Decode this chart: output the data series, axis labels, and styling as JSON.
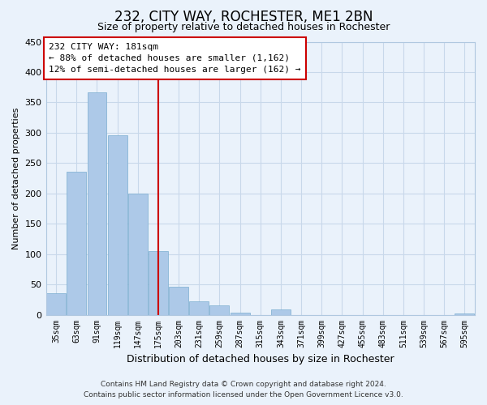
{
  "title": "232, CITY WAY, ROCHESTER, ME1 2BN",
  "subtitle": "Size of property relative to detached houses in Rochester",
  "xlabel": "Distribution of detached houses by size in Rochester",
  "ylabel": "Number of detached properties",
  "categories": [
    "35sqm",
    "63sqm",
    "91sqm",
    "119sqm",
    "147sqm",
    "175sqm",
    "203sqm",
    "231sqm",
    "259sqm",
    "287sqm",
    "315sqm",
    "343sqm",
    "371sqm",
    "399sqm",
    "427sqm",
    "455sqm",
    "483sqm",
    "511sqm",
    "539sqm",
    "567sqm",
    "595sqm"
  ],
  "values": [
    35,
    236,
    366,
    296,
    200,
    105,
    46,
    22,
    15,
    4,
    0,
    9,
    0,
    0,
    0,
    0,
    0,
    0,
    0,
    0,
    2
  ],
  "bar_color_blue": "#adc9e8",
  "bar_color_edge": "#7aadcf",
  "vline_color": "#cc0000",
  "vline_x": 5,
  "annotation_title": "232 CITY WAY: 181sqm",
  "annotation_line1": "← 88% of detached houses are smaller (1,162)",
  "annotation_line2": "12% of semi-detached houses are larger (162) →",
  "annotation_box_facecolor": "#ffffff",
  "annotation_box_edgecolor": "#cc0000",
  "grid_color": "#c8d8ea",
  "background_color": "#eaf2fb",
  "ylim": [
    0,
    450
  ],
  "yticks": [
    0,
    50,
    100,
    150,
    200,
    250,
    300,
    350,
    400,
    450
  ],
  "title_fontsize": 12,
  "subtitle_fontsize": 9,
  "xlabel_fontsize": 9,
  "ylabel_fontsize": 8,
  "footer_line1": "Contains HM Land Registry data © Crown copyright and database right 2024.",
  "footer_line2": "Contains public sector information licensed under the Open Government Licence v3.0."
}
